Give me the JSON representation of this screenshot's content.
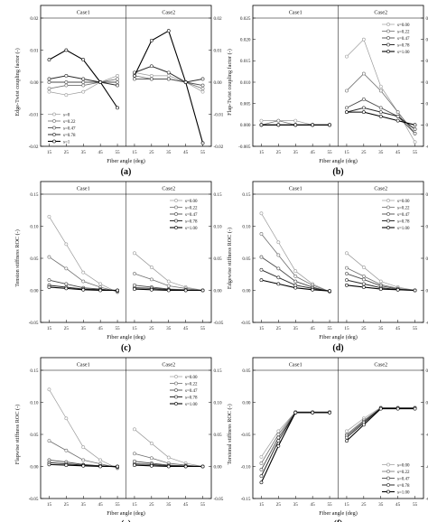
{
  "chart_data": [
    {
      "panel": "(a)",
      "type": "line",
      "ylabel": "Edge-Twist coupling factor (-)",
      "xlabel": "Fiber angle (deg)",
      "panels": [
        "Case1",
        "Case2"
      ],
      "x": [
        15,
        25,
        35,
        45,
        55
      ],
      "ylim": [
        -0.02,
        0.02
      ],
      "yticks": [
        -0.02,
        -0.01,
        0.0,
        0.01,
        0.02
      ],
      "yticklabels": [
        "-0.02",
        "-0.01",
        "0.00",
        "0.01",
        "0.02"
      ],
      "xticklabels": [
        "15",
        "25",
        "35",
        "45",
        "55"
      ],
      "legend": {
        "panel": 0,
        "position": "bottom-left"
      },
      "series": [
        {
          "name": "s=0",
          "case1": [
            -0.003,
            -0.004,
            -0.003,
            0.0,
            0.002
          ],
          "case2": [
            0.003,
            0.002,
            0.002,
            0.0,
            -0.003
          ]
        },
        {
          "name": "s=0.22",
          "case1": [
            -0.002,
            -0.001,
            -0.001,
            0.0,
            0.001
          ],
          "case2": [
            0.002,
            0.001,
            0.001,
            0.0,
            -0.002
          ]
        },
        {
          "name": "s=0.47",
          "case1": [
            0.0,
            0.0,
            0.0,
            0.0,
            0.0
          ],
          "case2": [
            0.001,
            0.001,
            0.001,
            0.0,
            -0.001
          ]
        },
        {
          "name": "s=0.78",
          "case1": [
            0.001,
            0.002,
            0.001,
            0.0,
            -0.001
          ],
          "case2": [
            0.003,
            0.005,
            0.003,
            0.0,
            0.001
          ]
        },
        {
          "name": "s=1",
          "case1": [
            0.007,
            0.01,
            0.007,
            0.0,
            -0.008
          ],
          "case2": [
            0.002,
            0.013,
            0.016,
            0.0,
            -0.019
          ]
        }
      ]
    },
    {
      "panel": "(b)",
      "type": "line",
      "ylabel": "Flap-Twist coupling factor (-)",
      "xlabel": "Fiber angle (deg)",
      "panels": [
        "Case1",
        "Case2"
      ],
      "x": [
        15,
        25,
        35,
        45,
        55
      ],
      "ylim": [
        -0.005,
        0.025
      ],
      "yticks": [
        -0.005,
        0.0,
        0.005,
        0.01,
        0.015,
        0.02,
        0.025
      ],
      "yticklabels": [
        "-0.005",
        "0.000",
        "0.005",
        "0.010",
        "0.015",
        "0.020",
        "0.025"
      ],
      "xticklabels": [
        "15",
        "25",
        "35",
        "45",
        "55"
      ],
      "legend": {
        "panel": 1,
        "position": "top-right"
      },
      "series": [
        {
          "name": "s=0.00",
          "case1": [
            0.001,
            0.001,
            0.001,
            0.0,
            0.0
          ],
          "case2": [
            0.016,
            0.02,
            0.009,
            0.003,
            -0.004
          ]
        },
        {
          "name": "s=0.22",
          "case1": [
            0.0,
            0.001,
            0.0,
            0.0,
            0.0
          ],
          "case2": [
            0.008,
            0.012,
            0.008,
            0.003,
            -0.002
          ]
        },
        {
          "name": "s=0.47",
          "case1": [
            0.0,
            0.0,
            0.0,
            0.0,
            0.0
          ],
          "case2": [
            0.004,
            0.006,
            0.004,
            0.002,
            -0.002
          ]
        },
        {
          "name": "s=0.78",
          "case1": [
            0.0,
            0.0,
            0.0,
            0.0,
            0.0
          ],
          "case2": [
            0.003,
            0.004,
            0.003,
            0.002,
            -0.001
          ]
        },
        {
          "name": "s=1.00",
          "case1": [
            0.0,
            0.0,
            0.0,
            0.0,
            0.0
          ],
          "case2": [
            0.003,
            0.003,
            0.002,
            0.001,
            0.0
          ]
        }
      ]
    },
    {
      "panel": "(c)",
      "type": "line",
      "ylabel": "Tension stiffness ROC (-)",
      "xlabel": "Fiber angle (deg)",
      "panels": [
        "Case1",
        "Case2"
      ],
      "x": [
        15,
        25,
        35,
        45,
        55
      ],
      "ylim": [
        -0.05,
        0.15
      ],
      "yticks": [
        -0.05,
        0.0,
        0.05,
        0.1,
        0.15
      ],
      "yticklabels": [
        "-0.05",
        "0.00",
        "0.05",
        "0.10",
        "0.15"
      ],
      "xticklabels": [
        "15",
        "25",
        "35",
        "45",
        "55"
      ],
      "legend": {
        "panel": 1,
        "position": "top-right"
      },
      "series": [
        {
          "name": "s=0.00",
          "case1": [
            0.115,
            0.072,
            0.028,
            0.01,
            -0.003
          ],
          "case2": [
            0.058,
            0.036,
            0.014,
            0.005,
            0.0
          ]
        },
        {
          "name": "s=0.22",
          "case1": [
            0.052,
            0.034,
            0.014,
            0.005,
            -0.002
          ],
          "case2": [
            0.026,
            0.017,
            0.007,
            0.003,
            0.0
          ]
        },
        {
          "name": "s=0.47",
          "case1": [
            0.016,
            0.01,
            0.004,
            0.002,
            -0.001
          ],
          "case2": [
            0.008,
            0.005,
            0.002,
            0.001,
            0.0
          ]
        },
        {
          "name": "s=0.78",
          "case1": [
            0.008,
            0.005,
            0.002,
            0.001,
            0.0
          ],
          "case2": [
            0.004,
            0.003,
            0.001,
            0.0,
            0.0
          ]
        },
        {
          "name": "s=1.00",
          "case1": [
            0.005,
            0.003,
            0.001,
            0.0,
            0.0
          ],
          "case2": [
            0.002,
            0.001,
            0.0,
            0.0,
            0.0
          ]
        }
      ]
    },
    {
      "panel": "(d)",
      "type": "line",
      "ylabel": "Edgewise stiffness ROC (-)",
      "xlabel": "Fiber angle (deg)",
      "panels": [
        "Case1",
        "Case2"
      ],
      "x": [
        15,
        25,
        35,
        45,
        55
      ],
      "ylim": [
        -0.05,
        0.15
      ],
      "yticks": [
        -0.05,
        0.0,
        0.05,
        0.1,
        0.15
      ],
      "yticklabels": [
        "-0.05",
        "0.00",
        "0.05",
        "0.10",
        "0.15"
      ],
      "xticklabels": [
        "15",
        "25",
        "35",
        "45",
        "55"
      ],
      "legend": {
        "panel": 1,
        "position": "top-right"
      },
      "series": [
        {
          "name": "s=0.00",
          "case1": [
            0.12,
            0.075,
            0.03,
            0.01,
            -0.002
          ],
          "case2": [
            0.058,
            0.036,
            0.014,
            0.005,
            0.0
          ]
        },
        {
          "name": "s=0.22",
          "case1": [
            0.088,
            0.055,
            0.022,
            0.008,
            -0.002
          ],
          "case2": [
            0.035,
            0.022,
            0.009,
            0.003,
            0.0
          ]
        },
        {
          "name": "s=0.47",
          "case1": [
            0.052,
            0.034,
            0.014,
            0.005,
            -0.002
          ],
          "case2": [
            0.026,
            0.017,
            0.007,
            0.002,
            0.0
          ]
        },
        {
          "name": "s=0.78",
          "case1": [
            0.032,
            0.02,
            0.008,
            0.003,
            -0.001
          ],
          "case2": [
            0.016,
            0.01,
            0.004,
            0.001,
            0.0
          ]
        },
        {
          "name": "s=1.00",
          "case1": [
            0.016,
            0.01,
            0.004,
            0.001,
            -0.001
          ],
          "case2": [
            0.008,
            0.005,
            0.002,
            0.001,
            0.0
          ]
        }
      ]
    },
    {
      "panel": "(e)",
      "type": "line",
      "ylabel": "Flapwise stiffness ROC (-)",
      "xlabel": "Fiber angle (deg)",
      "panels": [
        "Case1",
        "Case2"
      ],
      "x": [
        15,
        25,
        35,
        45,
        55
      ],
      "ylim": [
        -0.05,
        0.15
      ],
      "yticks": [
        -0.05,
        0.0,
        0.05,
        0.1,
        0.15
      ],
      "yticklabels": [
        "-0.05",
        "0.00",
        "0.05",
        "0.10",
        "0.15"
      ],
      "xticklabels": [
        "15",
        "25",
        "35",
        "45",
        "55"
      ],
      "legend": {
        "panel": 1,
        "position": "top-right"
      },
      "series": [
        {
          "name": "s=0.00",
          "case1": [
            0.12,
            0.075,
            0.03,
            0.01,
            -0.003
          ],
          "case2": [
            0.058,
            0.036,
            0.014,
            0.005,
            0.0
          ]
        },
        {
          "name": "s=0.22",
          "case1": [
            0.04,
            0.025,
            0.01,
            0.004,
            -0.002
          ],
          "case2": [
            0.02,
            0.013,
            0.005,
            0.002,
            0.0
          ]
        },
        {
          "name": "s=0.47",
          "case1": [
            0.01,
            0.007,
            0.003,
            0.001,
            -0.001
          ],
          "case2": [
            0.008,
            0.005,
            0.002,
            0.001,
            0.0
          ]
        },
        {
          "name": "s=0.78",
          "case1": [
            0.006,
            0.004,
            0.002,
            0.001,
            0.0
          ],
          "case2": [
            0.004,
            0.003,
            0.001,
            0.0,
            0.0
          ]
        },
        {
          "name": "s=1.00",
          "case1": [
            0.003,
            0.002,
            0.001,
            0.0,
            0.0
          ],
          "case2": [
            0.002,
            0.001,
            0.0,
            0.0,
            0.0
          ]
        }
      ]
    },
    {
      "panel": "(f)",
      "type": "line",
      "ylabel": "Torsional stiffness ROC (-)",
      "xlabel": "Fiber angle (deg)",
      "panels": [
        "Case1",
        "Case2"
      ],
      "x": [
        15,
        25,
        35,
        45,
        55
      ],
      "ylim": [
        -0.15,
        0.05
      ],
      "yticks": [
        -0.15,
        -0.1,
        -0.05,
        0.0,
        0.05
      ],
      "yticklabels": [
        "-0.15",
        "-0.10",
        "-0.05",
        "0.00",
        "0.05"
      ],
      "xticklabels": [
        "15",
        "25",
        "35",
        "45",
        "55"
      ],
      "legend": {
        "panel": 1,
        "position": "bottom-right"
      },
      "series": [
        {
          "name": "s=0.00",
          "case1": [
            -0.085,
            -0.045,
            -0.015,
            -0.015,
            -0.015
          ],
          "case2": [
            -0.045,
            -0.025,
            -0.008,
            -0.008,
            -0.008
          ]
        },
        {
          "name": "s=0.22",
          "case1": [
            -0.095,
            -0.05,
            -0.015,
            -0.015,
            -0.015
          ],
          "case2": [
            -0.05,
            -0.028,
            -0.009,
            -0.009,
            -0.009
          ]
        },
        {
          "name": "s=0.47",
          "case1": [
            -0.105,
            -0.055,
            -0.016,
            -0.016,
            -0.016
          ],
          "case2": [
            -0.052,
            -0.03,
            -0.009,
            -0.009,
            -0.009
          ]
        },
        {
          "name": "s=0.78",
          "case1": [
            -0.115,
            -0.06,
            -0.016,
            -0.016,
            -0.016
          ],
          "case2": [
            -0.055,
            -0.032,
            -0.009,
            -0.009,
            -0.009
          ]
        },
        {
          "name": "s=1.00",
          "case1": [
            -0.125,
            -0.068,
            -0.016,
            -0.016,
            -0.016
          ],
          "case2": [
            -0.06,
            -0.035,
            -0.01,
            -0.01,
            -0.01
          ]
        }
      ]
    }
  ]
}
